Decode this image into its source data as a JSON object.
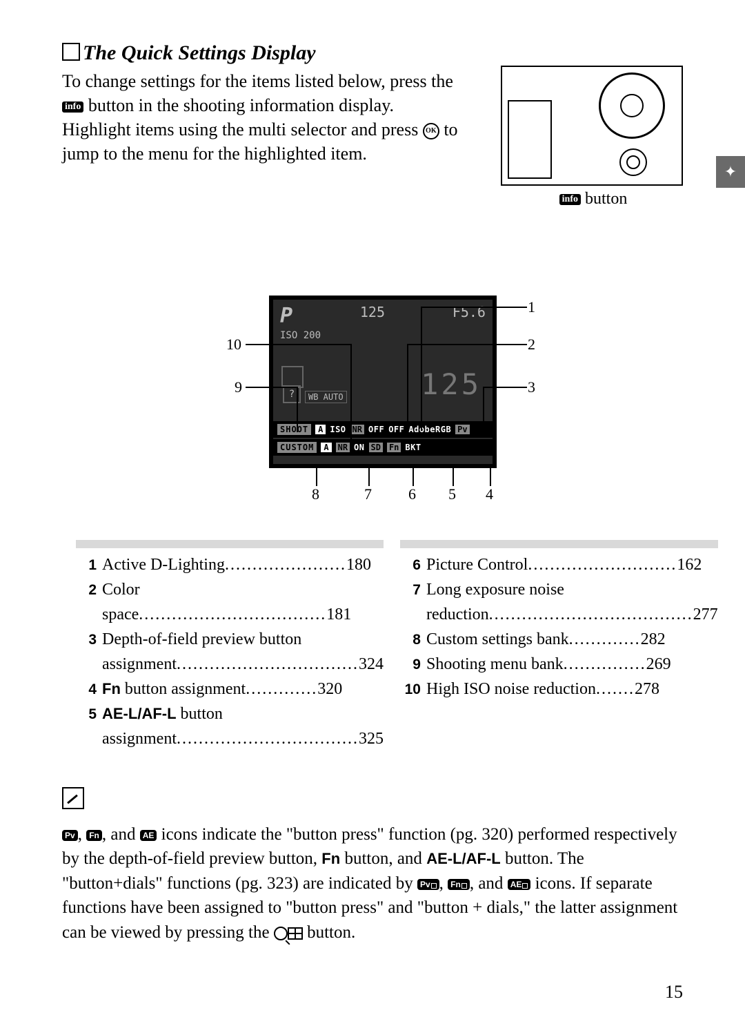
{
  "title": "The Quick Settings Display",
  "intro_parts": {
    "a": "To change settings for the items listed below, press the ",
    "info": "info",
    "b": " button in the shooting information display.  Highlight items using the multi selector and press ",
    "ok": "OK",
    "c": " to jump to the menu for the highlighted item."
  },
  "camera_caption_prefix": "info",
  "camera_caption": " button",
  "side_tab": "✦",
  "lcd": {
    "p": "P",
    "shutter": "125",
    "aperture": "F5.6",
    "iso": "ISO 200",
    "big": "125",
    "auto": "WB AUTO",
    "q": "?",
    "bar1": {
      "lbl": "SHOOT",
      "a": "A",
      "t1": "ISO",
      "t2": "NR",
      "t3": "OFF",
      "t4": "OFF",
      "t5": "AdobeRGB",
      "t6": "Pv"
    },
    "bar2": {
      "lbl": "CUSTOM",
      "a": "A",
      "t1": "NR",
      "t2": "ON",
      "t3": "SD",
      "t4": "Fn",
      "t5": "BKT"
    }
  },
  "callouts": {
    "n1": "1",
    "n2": "2",
    "n3": "3",
    "n4": "4",
    "n5": "5",
    "n6": "6",
    "n7": "7",
    "n8": "8",
    "n9": "9",
    "n10": "10"
  },
  "legend_left": [
    {
      "n": "1",
      "label": "Active D-Lighting",
      "dots": "......................",
      "pg": "180"
    },
    {
      "n": "2",
      "label": "Color space",
      "dots": "..................................",
      "pg": "181"
    },
    {
      "n": "3",
      "label": "Depth-of-field preview button assignment",
      "dots": ".................................",
      "pg": "324",
      "multi": true
    },
    {
      "n": "4",
      "label_pre": "Fn",
      "label": " button assignment",
      "dots": ".............",
      "pg": "320"
    },
    {
      "n": "5",
      "label_pre": "AE-L/AF-L",
      "label": " button assignment",
      "dots": ".................................",
      "pg": "325",
      "multi": true
    }
  ],
  "legend_right": [
    {
      "n": "6",
      "label": "Picture Control",
      "dots": "...........................",
      "pg": "162"
    },
    {
      "n": "7",
      "label": "Long exposure noise reduction",
      "dots": ".....................................",
      "pg": "277",
      "multi": true
    },
    {
      "n": "8",
      "label": "Custom settings bank",
      "dots": ".............",
      "pg": "282"
    },
    {
      "n": "9",
      "label": "Shooting menu bank",
      "dots": "...............",
      "pg": "269"
    },
    {
      "n": "10",
      "label": "High ISO noise reduction",
      "dots": ".......",
      "pg": "278"
    }
  ],
  "note": {
    "p1a": ", ",
    "p1b": ", and ",
    "p1c": " icons indicate the \"button press\" function (pg. 320) performed respectively by the depth-of-field preview button, ",
    "fn": "Fn",
    "p1d": " button, and ",
    "ael": "AE-L/AF-L",
    "p1e": " button.  The \"button+dials\" functions (pg. 323) are indicated by ",
    "p2a": ", ",
    "p2b": ", and ",
    "p2c": " icons.  If separate functions have been assigned to \"button press\" and \"button + dials,\" the latter assignment can be viewed by pressing the ",
    "p2d": " button.",
    "pv": "Pv",
    "fnI": "Fn",
    "ae": "AE"
  },
  "page_number": "15"
}
